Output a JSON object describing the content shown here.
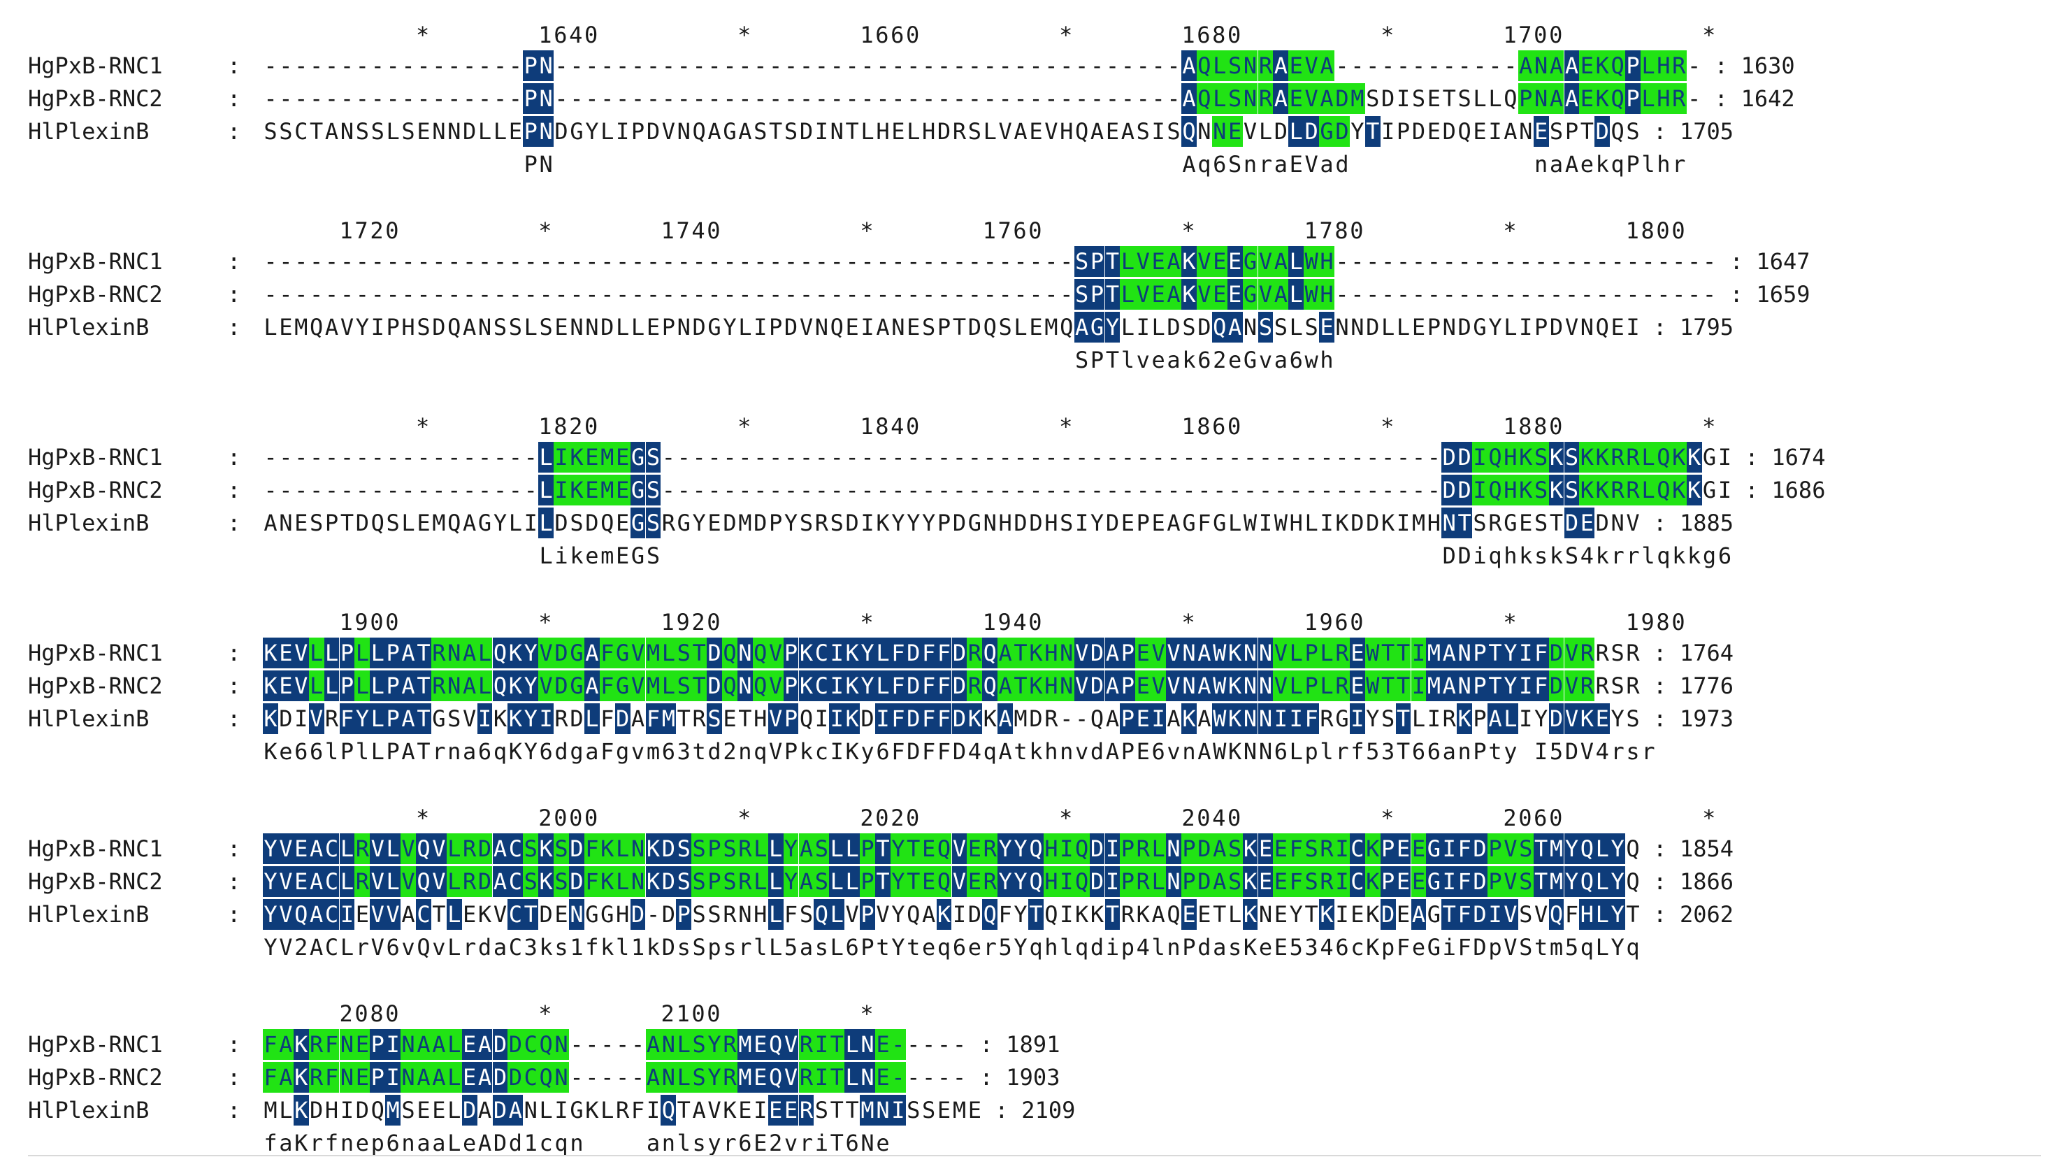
{
  "alignment": {
    "blocks": [
      {
        "ruler": "          *       1640         *       1660         *       1680         *       1700         *",
        "rows": [
          {
            "name": "HgPxB-RNC1",
            "seq": "-----------------PN-----------------------------------------AQLSNRAEVA------------ANAAEKQPLHR-",
            "pos": "1630",
            "marks": "                 bb                                         bgggggbggg            gggbgggbggg "
          },
          {
            "name": "HgPxB-RNC2",
            "seq": "-----------------PN-----------------------------------------AQLSNRAEVADMSDISETSLLQPNAAEKQPLHR-",
            "pos": "1642",
            "marks": "                 bb                                         bgggggbggggg          gggbgggbggg "
          },
          {
            "name": "HlPlexinB",
            "seq": "SSCTANSSLSENNDLLEPNDGYLIPDVNQAGASTSDINTLHELHDRSLVAEVHQAEASISQNNEVLDLDGDYTIPDEDQEIANESPTDQS",
            "pos": "1705",
            "marks": "                 bb                                         b gg   bbgg b          b   b    "
          }
        ],
        "consensus": "                 PN                                         Aq6SnraEVad            naAekqPlhr "
      },
      {
        "ruler": "     1720         *       1740         *       1760         *       1780         *       1800",
        "rows": [
          {
            "name": "HgPxB-RNC1",
            "seq": "-----------------------------------------------------SPTLVEAKVEEGVALWH-------------------------",
            "pos": "1647",
            "marks": "                                                     bbbggggbggbgggbgg                         "
          },
          {
            "name": "HgPxB-RNC2",
            "seq": "-----------------------------------------------------SPTLVEAKVEEGVALWH-------------------------",
            "pos": "1659",
            "marks": "                                                     bbbggggbggbgggbgg                         "
          },
          {
            "name": "HlPlexinB",
            "seq": "LEMQAVYIPHSDQANSSLSENNDLLEPNDGYLIPDVNQEIANESPTDQSLEMQAGYLILDSDQANSSLSENNDLLEPNDGYLIPDVNQEI",
            "pos": "1795",
            "marks": "                                                     bbb      bb b   b                         "
          }
        ],
        "consensus": "                                                     SPTlveak62eGva6wh                         "
      },
      {
        "ruler": "          *       1820         *       1840         *       1860         *       1880         *",
        "rows": [
          {
            "name": "HgPxB-RNC1",
            "seq": "------------------LIKEMEGS---------------------------------------------------DDIQHKSKSKKRRLQKKGI",
            "pos": "1674",
            "marks": "                  bgggggbb                                                   bbgggggbbgggggggb"
          },
          {
            "name": "HgPxB-RNC2",
            "seq": "------------------LIKEMEGS---------------------------------------------------DDIQHKSKSKKRRLQKKGI",
            "pos": "1686",
            "marks": "                  bgggggbb                                                   bbgggggbbgggggggb"
          },
          {
            "name": "HlPlexinB",
            "seq": "ANESPTDQSLEMQAGYLILDSDQEGSRGYEDMDPYSRSDIKYYYPDGNHDDHSIYDEPEAGFGLWIWHLIKDDKIMHNTSRGESTDEDNV",
            "pos": "1885",
            "marks": "                  b     bb                                                   bb      bb       b"
          }
        ],
        "consensus": "                  LikemEGS                                                   DDiqhkskS4krrlqkkg6"
      },
      {
        "ruler": "     1900         *       1920         *       1940         *       1960         *       1980",
        "rows": [
          {
            "name": "HgPxB-RNC1",
            "seq": "KEVLLPLLPATRNALQKYVDGAFGVMLSTDQNQVPKCIKYLFDFFDRQATKHNVDAPEVVNAWKNNVLPLREWTTIMANPTYIFDVRRSR",
            "pos": "1764",
            "marks": "bbbgbbgbbbbggggbbbgggbgggggggbgbggbbbbbbbbbbbbgbgggggbbbbggbbbbbbbgggggbggggbbbbbbbbggg"
          },
          {
            "name": "HgPxB-RNC2",
            "seq": "KEVLLPLLPATRNALQKYVDGAFGVMLSTDQNQVPKCIKYLFDFFDRQATKHNVDAPEVVNAWKNNVLPLREWTTIMANPTYIFDVRRSR",
            "pos": "1776",
            "marks": "bbbgbbgbbbbggggbbbgggbgggggggbgbggbbbbbbbbbbbbgbgggggbbbbggbbbbbbbgggggbggggbbbbbbbbggg"
          },
          {
            "name": "HlPlexinB",
            "seq": "KDIVRFYLPATGSVIKKYIRDLFDAFMTRSETHVPQIIKDIFDFFDKKAMDR--QAPEIAKAWKNNIIFRGIYSTLIRKPALIYDVKEYS",
            "pos": "1973",
            "marks": "b  b bbbbbb   b bbb  b b bb  b   bb  bb bbbbbbb b       bbb b bbbbbbb  b  b   b bb  bbbb"
          }
        ],
        "consensus": "Ke66lPlLPATrna6qKY6dgaFgvm63td2nqVPkcIKy6FDFFD4qAtkhnvdAPE6vnAWKNN6Lplrf53T66anPty I5DV4rsr"
      },
      {
        "ruler": "          *       2000         *       2020         *       2040         *       2060         *",
        "rows": [
          {
            "name": "HgPxB-RNC1",
            "seq": "YVEACLRVLVQVLRDACSKSDFKLNKDSSPSRLLYASLLPTYTEQVERYYQHIQDIPRLNPDASKEEFSRICKPEEGIFDPVSTMYQLYQ",
            "pos": "1854",
            "marks": "bbbbbbgbbgbbgggbbgbgbggggbbbgggggbgggbbgbggggbggbbbgggbbgggbggggbbgggggbgbbgbbbbgggbbbbbb"
          },
          {
            "name": "HgPxB-RNC2",
            "seq": "YVEACLRVLVQVLRDACSKSDFKLNKDSSPSRLLYASLLPTYTEQVERYYQHIQDIPRLNPDASKEEFSRICKPEEGIFDPVSTMYQLYQ",
            "pos": "1866",
            "marks": "bbbbbbgbbgbbgggbbgbgbggggbbbgggggbgggbbgbggggbggbbbgggbbgggbggggbbgggggbgbbgbbbbgggbbbbbb"
          },
          {
            "name": "HlPlexinB",
            "seq": "YVQACIEVVACTLEKVCTDENGGHD-DPSSRNHLFSQLVPVYQAKIDQFYTQIKKTRKAQEETLKNEYTKIEKDEAGTFDIVSVQFHLYT",
            "pos": "2062",
            "marks": "bbbbbb bb b b   bb  b   b  b     b  bb b    b  b  b    b    b   b    b   b b bbbbb  b bbb"
          }
        ],
        "consensus": "YV2ACLrV6vQvLrdaC3ks1fkl1kDsSpsrlL5asL6PtYteq6er5Yqhlqdip4lnPdasKeE5346cKpFeGiFDpVStm5qLYq"
      },
      {
        "ruler": "     2080         *       2100         *",
        "rows": [
          {
            "name": "HgPxB-RNC1",
            "seq": "FAKRFNEPINAALEADDCQN-----ANLSYRMEQVRITLNE-----",
            "pos": "1891",
            "marks": "ggbggggbbggggbbbgggg     ggggggbbbbgggbbgg"
          },
          {
            "name": "HgPxB-RNC2",
            "seq": "FAKRFNEPINAALEADDCQN-----ANLSYRMEQVRITLNE-----",
            "pos": "1903",
            "marks": "ggbggggbbggggbbbgggg     ggggggbbbbgggbbgg"
          },
          {
            "name": "HlPlexinB",
            "seq": "MLKDHIDQMSEELDADANLIGKLRFIQTAVKEIEERSTTMNISSEME",
            "pos": "2109",
            "marks": "  b     b    b bb         b      bbb   bbb"
          }
        ],
        "consensus": "faKrfnep6naaLeADd1cqn    anlsyr6E2vriT6Ne"
      }
    ]
  },
  "colors": {
    "identical": "#0e3c7a",
    "similar": "#21e314",
    "text": "#1a1a1a"
  }
}
